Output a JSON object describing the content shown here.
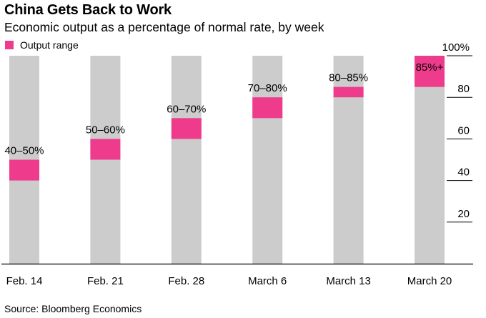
{
  "chart_data": {
    "type": "bar",
    "title": "China Gets Back to Work",
    "subtitle": "Economic output as a percentage of normal rate, by week",
    "legend": [
      {
        "label": "Output range",
        "color": "#ef3b8c"
      }
    ],
    "legend_position": "top-left",
    "categories": [
      "Feb. 14",
      "Feb. 21",
      "Feb. 28",
      "March 6",
      "March 13",
      "March 20"
    ],
    "series": [
      {
        "name": "Output range",
        "low": [
          40,
          50,
          60,
          70,
          80,
          85
        ],
        "high": [
          50,
          60,
          70,
          80,
          85,
          100
        ]
      }
    ],
    "data_labels": [
      "40–50%",
      "50–60%",
      "60–70%",
      "70–80%",
      "80–85%",
      "85%+"
    ],
    "y_ticks": [
      20,
      40,
      60,
      80,
      100
    ],
    "y_tick_labels": [
      "20",
      "40",
      "60",
      "80",
      "100%"
    ],
    "ylim": [
      0,
      100
    ],
    "y_axis_side": "right",
    "background_bar_color": "#cccccc",
    "range_color": "#ef3b8c",
    "source": "Source: Bloomberg Economics"
  }
}
